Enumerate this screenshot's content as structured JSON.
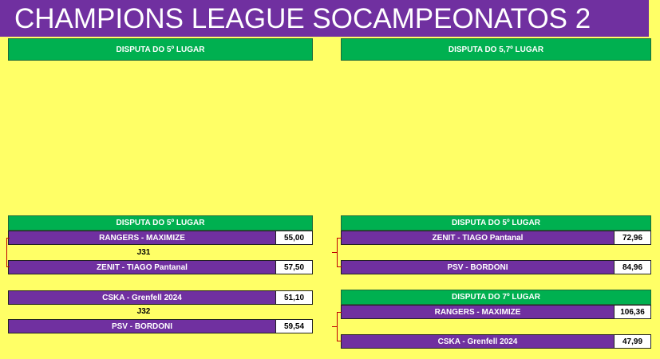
{
  "title": "CHAMPIONS LEAGUE SOCAMPEONATOS 2",
  "top_headers": {
    "left": "DISPUTA DO 5º LUGAR",
    "right": "DISPUTA DO 5,7º LUGAR"
  },
  "left_group": {
    "header": "DISPUTA DO 5º LUGAR",
    "match1": {
      "home": "RANGERS - MAXIMIZE",
      "home_score": "55,00",
      "label": "J31",
      "away": "ZENIT - TIAGO Pantanal",
      "away_score": "57,50"
    },
    "match2": {
      "home": "CSKA - Grenfell 2024",
      "home_score": "51,10",
      "label": "J32",
      "away": "PSV -  BORDONI",
      "away_score": "59,54"
    }
  },
  "right_group": {
    "header1": "DISPUTA DO 5º LUGAR",
    "match1": {
      "home": "ZENIT - TIAGO Pantanal",
      "home_score": "72,96",
      "away": "PSV -  BORDONI",
      "away_score": "84,96"
    },
    "header2": "DISPUTA DO 7º LUGAR",
    "match2": {
      "home": "RANGERS - MAXIMIZE",
      "home_score": "106,36",
      "away": "CSKA - Grenfell 2024",
      "away_score": "47,99"
    }
  },
  "colors": {
    "background": "#ffff66",
    "title_bar": "#7030a0",
    "header": "#00b050",
    "team_cell": "#7030a0",
    "bracket_line": "#c00000"
  }
}
